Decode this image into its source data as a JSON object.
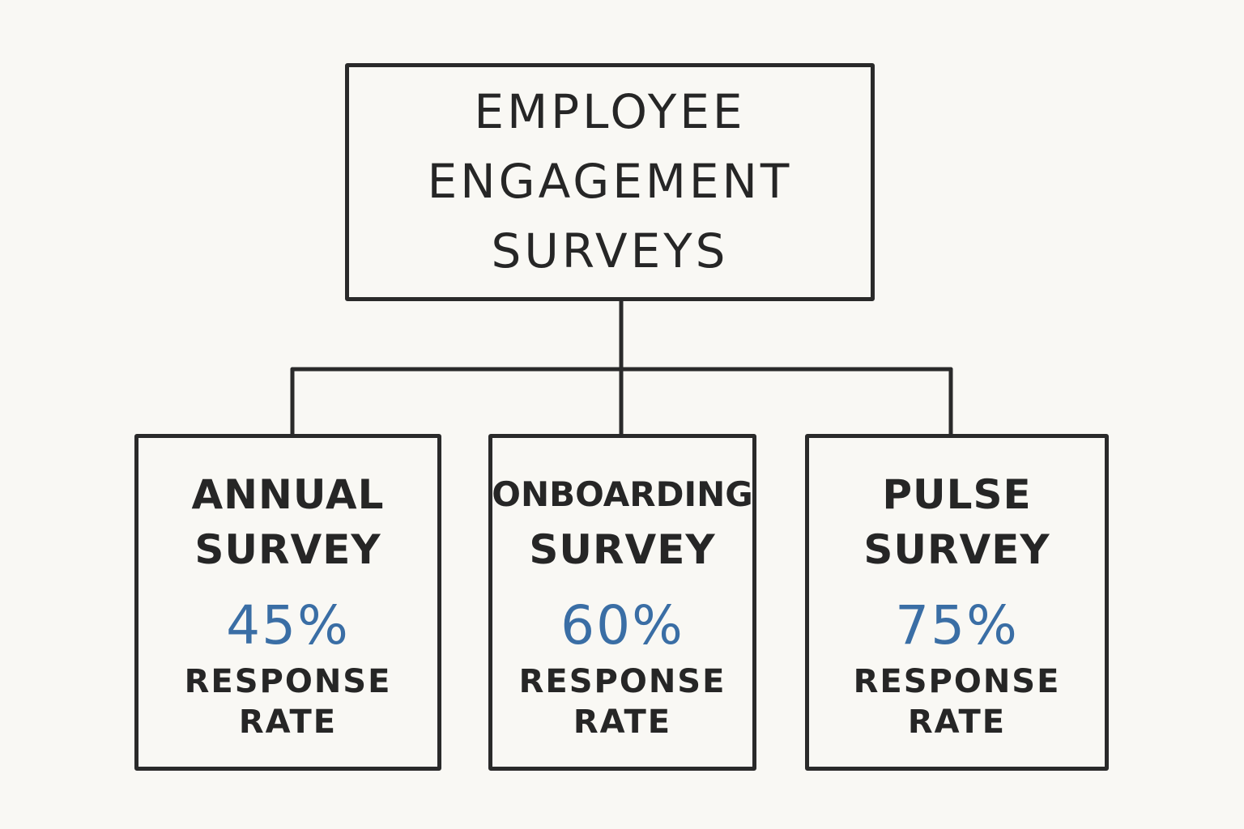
{
  "root": {
    "title_lines": [
      "EMPLOYEE",
      "ENGAGEMENT",
      "SURVEYS"
    ]
  },
  "children": [
    {
      "title_lines": [
        "ANNUAL",
        "SURVEY"
      ],
      "rate": "45%",
      "rate_value": 45,
      "rate_label_lines": [
        "RESPONSE",
        "RATE"
      ]
    },
    {
      "title_lines": [
        "ONBOARDING",
        "SURVEY"
      ],
      "rate": "60%",
      "rate_value": 60,
      "rate_label_lines": [
        "RESPONSE",
        "RATE"
      ]
    },
    {
      "title_lines": [
        "PULSE",
        "SURVEY"
      ],
      "rate": "75%",
      "rate_value": 75,
      "rate_label_lines": [
        "RESPONSE",
        "RATE"
      ]
    }
  ],
  "colors": {
    "background": "#f9f8f4",
    "stroke": "#2a2a2a",
    "text": "#262626",
    "accent": "#3a6ea5"
  }
}
